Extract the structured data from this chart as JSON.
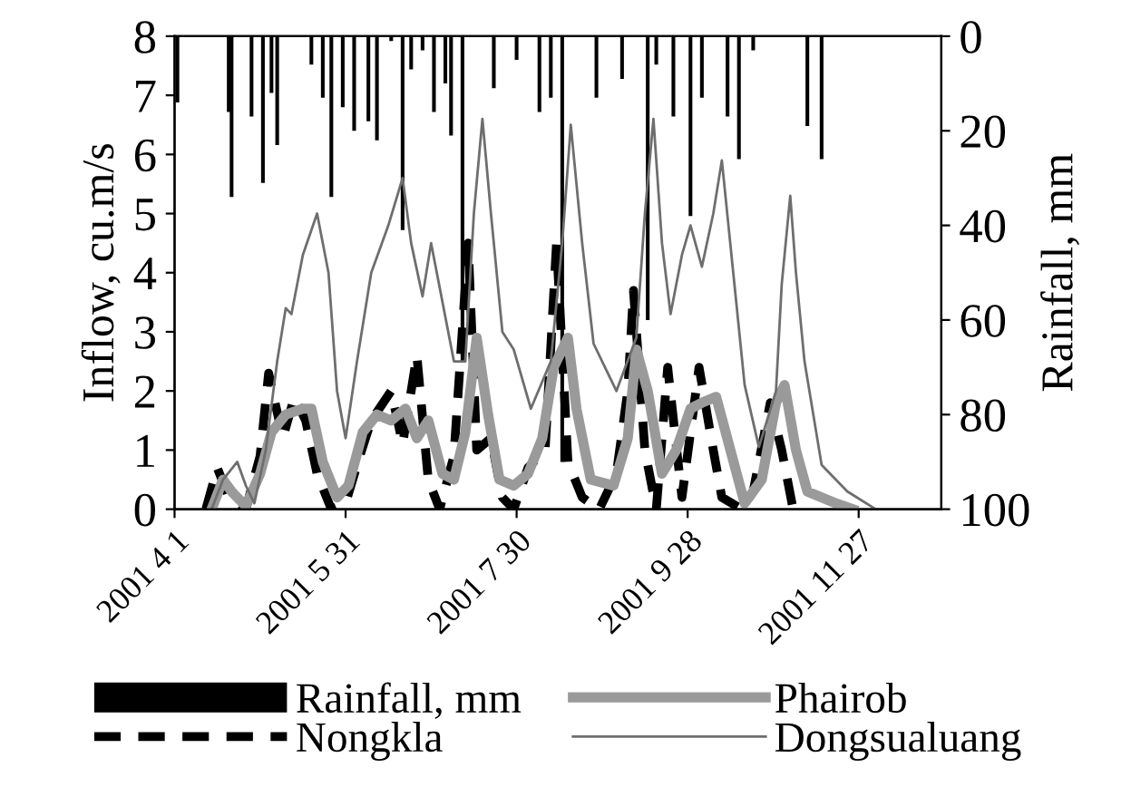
{
  "chart_data": {
    "type": "line",
    "ylabel": "Inflow, cu.m/s",
    "y2label": "Rainfall, mm",
    "xlim": [
      "2001-04-01",
      "2001-12-26"
    ],
    "xticks": [
      {
        "value": "2001-04-01",
        "label": "2001 4 1"
      },
      {
        "value": "2001-05-31",
        "label": "2001 5 31"
      },
      {
        "value": "2001-07-30",
        "label": "2001 7 30"
      },
      {
        "value": "2001-09-28",
        "label": "2001 9 28"
      },
      {
        "value": "2001-11-27",
        "label": "2001 11 27"
      }
    ],
    "ylim": [
      0,
      8
    ],
    "yticks": [
      0,
      1,
      2,
      3,
      4,
      5,
      6,
      7,
      8
    ],
    "y2lim": [
      100,
      0
    ],
    "y2ticks": [
      0,
      20,
      40,
      60,
      80,
      100
    ],
    "grid": false,
    "legend": "bottom",
    "marker": "none",
    "series": [
      {
        "name": "Rainfall, mm",
        "type": "bar",
        "axis": "y2",
        "color": "#000000",
        "x": [
          "2001-04-02",
          "2001-04-20",
          "2001-04-21",
          "2001-04-28",
          "2001-05-02",
          "2001-05-05",
          "2001-05-07",
          "2001-05-19",
          "2001-05-23",
          "2001-05-26",
          "2001-05-30",
          "2001-06-03",
          "2001-06-08",
          "2001-06-11",
          "2001-06-16",
          "2001-06-20",
          "2001-06-23",
          "2001-06-27",
          "2001-07-01",
          "2001-07-05",
          "2001-07-07",
          "2001-07-11",
          "2001-07-22",
          "2001-07-30",
          "2001-08-07",
          "2001-08-11",
          "2001-08-15",
          "2001-08-27",
          "2001-09-05",
          "2001-09-14",
          "2001-09-17",
          "2001-09-23",
          "2001-09-29",
          "2001-10-03",
          "2001-10-12",
          "2001-10-16",
          "2001-10-21",
          "2001-11-09",
          "2001-11-14"
        ],
        "values": [
          14,
          16,
          34,
          17,
          31,
          12,
          23,
          6,
          13,
          34,
          15,
          20,
          18,
          22,
          1,
          41,
          7,
          3,
          16,
          10,
          21,
          69,
          11,
          5,
          16,
          13,
          90,
          13,
          9,
          60,
          6,
          17,
          38,
          13,
          17,
          26,
          3,
          19,
          26
        ]
      },
      {
        "name": "Nongkla",
        "type": "line",
        "line_style": "dashed",
        "color": "#000000",
        "x": [
          "2001-04-12",
          "2001-04-16",
          "2001-04-20",
          "2001-04-26",
          "2001-05-01",
          "2001-05-04",
          "2001-05-09",
          "2001-05-13",
          "2001-05-17",
          "2001-05-21",
          "2001-05-26",
          "2001-05-31",
          "2001-06-05",
          "2001-06-09",
          "2001-06-16",
          "2001-06-20",
          "2001-06-25",
          "2001-06-29",
          "2001-07-03",
          "2001-07-08",
          "2001-07-13",
          "2001-07-16",
          "2001-07-21",
          "2001-07-25",
          "2001-07-29",
          "2001-08-03",
          "2001-08-09",
          "2001-08-13",
          "2001-08-17",
          "2001-08-22",
          "2001-08-28",
          "2001-09-03",
          "2001-09-07",
          "2001-09-09",
          "2001-09-13",
          "2001-09-17",
          "2001-09-21",
          "2001-09-26",
          "2001-10-02",
          "2001-10-07",
          "2001-10-10",
          "2001-10-17",
          "2001-10-21",
          "2001-10-27",
          "2001-10-31",
          "2001-11-04"
        ],
        "values": [
          0,
          0.7,
          0.2,
          0,
          0.9,
          2.3,
          1.2,
          1.9,
          1.5,
          0.6,
          0,
          0.1,
          0.9,
          1.5,
          2.0,
          1.1,
          2.6,
          0.5,
          0,
          0.9,
          4.5,
          1.0,
          1.2,
          0.2,
          0,
          0.7,
          1.0,
          4.5,
          0.8,
          0.2,
          0,
          0.6,
          2.0,
          3.7,
          1.0,
          0,
          2.4,
          0.2,
          2.4,
          1.0,
          0.2,
          0,
          0.3,
          1.8,
          1.0,
          0
        ]
      },
      {
        "name": "Phairob",
        "type": "line",
        "line_style": "solid",
        "color": "#9a9a9a",
        "x": [
          "2001-04-14",
          "2001-04-18",
          "2001-04-21",
          "2001-04-26",
          "2001-05-01",
          "2001-05-05",
          "2001-05-10",
          "2001-05-16",
          "2001-05-19",
          "2001-05-23",
          "2001-05-28",
          "2001-06-01",
          "2001-06-06",
          "2001-06-11",
          "2001-06-16",
          "2001-06-21",
          "2001-06-25",
          "2001-06-29",
          "2001-07-04",
          "2001-07-08",
          "2001-07-12",
          "2001-07-16",
          "2001-07-20",
          "2001-07-24",
          "2001-07-29",
          "2001-08-03",
          "2001-08-08",
          "2001-08-12",
          "2001-08-17",
          "2001-08-20",
          "2001-08-25",
          "2001-09-02",
          "2001-09-07",
          "2001-09-10",
          "2001-09-14",
          "2001-09-19",
          "2001-09-24",
          "2001-09-29",
          "2001-10-03",
          "2001-10-08",
          "2001-10-13",
          "2001-10-18",
          "2001-10-24",
          "2001-10-29",
          "2001-11-01",
          "2001-11-05",
          "2001-11-09",
          "2001-11-19",
          "2001-11-25"
        ],
        "values": [
          0,
          0.5,
          0.3,
          0.05,
          0.6,
          1.3,
          1.6,
          1.7,
          1.7,
          0.8,
          0.2,
          0.4,
          1.3,
          1.6,
          1.5,
          1.7,
          1.2,
          1.5,
          0.6,
          0.5,
          1.3,
          2.9,
          1.6,
          0.5,
          0.4,
          0.6,
          1.2,
          2.4,
          2.9,
          1.7,
          0.5,
          0.4,
          1.2,
          2.7,
          2.0,
          0.6,
          1.0,
          1.7,
          1.8,
          1.9,
          1.0,
          0.1,
          0.5,
          1.8,
          2.1,
          1.0,
          0.3,
          0.1,
          0
        ]
      },
      {
        "name": "Dongsualuang",
        "type": "line",
        "line_style": "solid",
        "color": "#6e6e6e",
        "x": [
          "2001-04-14",
          "2001-04-18",
          "2001-04-23",
          "2001-04-26",
          "2001-04-29",
          "2001-05-03",
          "2001-05-07",
          "2001-05-10",
          "2001-05-12",
          "2001-05-16",
          "2001-05-21",
          "2001-05-25",
          "2001-05-28",
          "2001-05-31",
          "2001-06-04",
          "2001-06-09",
          "2001-06-15",
          "2001-06-20",
          "2001-06-23",
          "2001-06-27",
          "2001-06-30",
          "2001-07-04",
          "2001-07-08",
          "2001-07-12",
          "2001-07-15",
          "2001-07-18",
          "2001-07-21",
          "2001-07-25",
          "2001-07-29",
          "2001-08-04",
          "2001-08-11",
          "2001-08-15",
          "2001-08-18",
          "2001-08-22",
          "2001-08-26",
          "2001-08-31",
          "2001-09-03",
          "2001-09-10",
          "2001-09-13",
          "2001-09-16",
          "2001-09-19",
          "2001-09-22",
          "2001-09-26",
          "2001-09-29",
          "2001-10-03",
          "2001-10-07",
          "2001-10-10",
          "2001-10-14",
          "2001-10-18",
          "2001-10-23",
          "2001-10-29",
          "2001-10-31",
          "2001-11-03",
          "2001-11-05",
          "2001-11-08",
          "2001-11-14",
          "2001-11-23",
          "2001-12-03"
        ],
        "values": [
          0,
          0.5,
          0.8,
          0.4,
          0.1,
          1.0,
          2.5,
          3.4,
          3.3,
          4.3,
          5.0,
          4.0,
          2.0,
          1.2,
          2.5,
          4.0,
          4.8,
          5.6,
          4.5,
          3.6,
          4.5,
          3.5,
          2.5,
          2.5,
          5.0,
          6.6,
          5.0,
          3.0,
          2.7,
          1.7,
          2.5,
          4.5,
          6.5,
          4.5,
          2.8,
          2.3,
          2.0,
          2.9,
          5.0,
          6.6,
          4.5,
          3.3,
          4.3,
          4.8,
          4.1,
          5.0,
          5.9,
          4.0,
          2.1,
          1.05,
          2.0,
          3.8,
          5.3,
          4.0,
          2.5,
          0.75,
          0.3,
          0
        ]
      }
    ]
  }
}
